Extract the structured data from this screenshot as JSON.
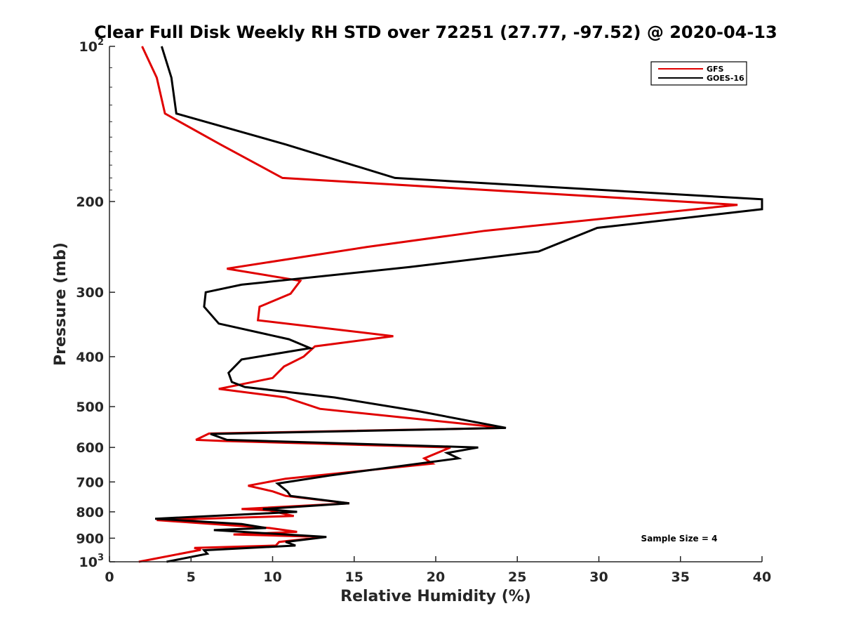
{
  "chart_data": {
    "type": "line",
    "title": "Clear Full Disk Weekly RH STD over 72251 (27.77, -97.52) @ 2020-04-13",
    "xlabel": "Relative Humidity (%)",
    "ylabel": "Pressure (mb)",
    "xlim": [
      0,
      40
    ],
    "ylim": [
      100,
      1000
    ],
    "yscale": "log",
    "y_direction": "reversed",
    "x_ticks": [
      "0",
      "5",
      "10",
      "15",
      "20",
      "25",
      "30",
      "35",
      "40"
    ],
    "x_tick_values": [
      0,
      5,
      10,
      15,
      20,
      25,
      30,
      35,
      40
    ],
    "y_ticks": [
      {
        "value": 100,
        "base": "10",
        "sup": "2",
        "label": ""
      },
      {
        "value": 200,
        "base": "",
        "sup": "",
        "label": "200"
      },
      {
        "value": 300,
        "base": "",
        "sup": "",
        "label": "300"
      },
      {
        "value": 400,
        "base": "",
        "sup": "",
        "label": "400"
      },
      {
        "value": 500,
        "base": "",
        "sup": "",
        "label": "500"
      },
      {
        "value": 600,
        "base": "",
        "sup": "",
        "label": "600"
      },
      {
        "value": 700,
        "base": "",
        "sup": "",
        "label": "700"
      },
      {
        "value": 800,
        "base": "",
        "sup": "",
        "label": "800"
      },
      {
        "value": 900,
        "base": "",
        "sup": "",
        "label": "900"
      },
      {
        "value": 1000,
        "base": "10",
        "sup": "3",
        "label": ""
      }
    ],
    "grid": false,
    "legend_position": "top-right",
    "annotation": "Sample Size = 4",
    "series": [
      {
        "name": "GFS",
        "color": "#e00000",
        "points": [
          [
            2.0,
            100
          ],
          [
            2.9,
            115
          ],
          [
            3.4,
            135
          ],
          [
            6.8,
            155
          ],
          [
            10.6,
            180
          ],
          [
            38.5,
            203
          ],
          [
            23.0,
            228
          ],
          [
            15.8,
            245
          ],
          [
            7.2,
            270
          ],
          [
            11.7,
            285
          ],
          [
            11.1,
            302
          ],
          [
            9.2,
            320
          ],
          [
            9.1,
            340
          ],
          [
            17.4,
            365
          ],
          [
            12.6,
            382
          ],
          [
            11.9,
            400
          ],
          [
            10.7,
            418
          ],
          [
            10.0,
            440
          ],
          [
            6.7,
            462
          ],
          [
            10.8,
            480
          ],
          [
            12.9,
            505
          ],
          [
            24.2,
            550
          ],
          [
            6.1,
            564
          ],
          [
            5.3,
            580
          ],
          [
            7.0,
            583
          ],
          [
            20.9,
            600
          ],
          [
            19.3,
            630
          ],
          [
            19.8,
            645
          ],
          [
            10.8,
            690
          ],
          [
            8.5,
            712
          ],
          [
            10.0,
            730
          ],
          [
            10.8,
            745
          ],
          [
            14.7,
            770
          ],
          [
            8.1,
            790
          ],
          [
            9.8,
            795
          ],
          [
            11.3,
            815
          ],
          [
            2.9,
            830
          ],
          [
            9.8,
            860
          ],
          [
            11.5,
            875
          ],
          [
            7.6,
            885
          ],
          [
            13.2,
            895
          ],
          [
            10.4,
            915
          ],
          [
            10.2,
            930
          ],
          [
            5.2,
            940
          ],
          [
            5.6,
            948
          ],
          [
            1.8,
            1000
          ]
        ]
      },
      {
        "name": "GOES-16",
        "color": "#000000",
        "points": [
          [
            3.2,
            100
          ],
          [
            3.8,
            115
          ],
          [
            4.1,
            135
          ],
          [
            10.8,
            155
          ],
          [
            17.5,
            180
          ],
          [
            40.0,
            198
          ],
          [
            40.0,
            207
          ],
          [
            29.9,
            225
          ],
          [
            26.3,
            250
          ],
          [
            18.4,
            268
          ],
          [
            8.1,
            290
          ],
          [
            5.9,
            300
          ],
          [
            5.8,
            320
          ],
          [
            6.7,
            345
          ],
          [
            11.0,
            370
          ],
          [
            12.3,
            385
          ],
          [
            8.1,
            405
          ],
          [
            7.3,
            430
          ],
          [
            7.5,
            448
          ],
          [
            8.3,
            458
          ],
          [
            13.8,
            480
          ],
          [
            18.9,
            510
          ],
          [
            24.3,
            550
          ],
          [
            6.2,
            565
          ],
          [
            7.2,
            580
          ],
          [
            22.6,
            600
          ],
          [
            20.7,
            615
          ],
          [
            21.4,
            630
          ],
          [
            13.5,
            680
          ],
          [
            10.3,
            705
          ],
          [
            10.9,
            730
          ],
          [
            11.1,
            745
          ],
          [
            14.7,
            770
          ],
          [
            9.4,
            790
          ],
          [
            11.5,
            800
          ],
          [
            2.8,
            825
          ],
          [
            8.1,
            845
          ],
          [
            9.6,
            860
          ],
          [
            6.4,
            868
          ],
          [
            13.3,
            895
          ],
          [
            10.8,
            915
          ],
          [
            11.4,
            930
          ],
          [
            5.8,
            950
          ],
          [
            6.0,
            965
          ],
          [
            3.5,
            1000
          ]
        ]
      }
    ]
  }
}
